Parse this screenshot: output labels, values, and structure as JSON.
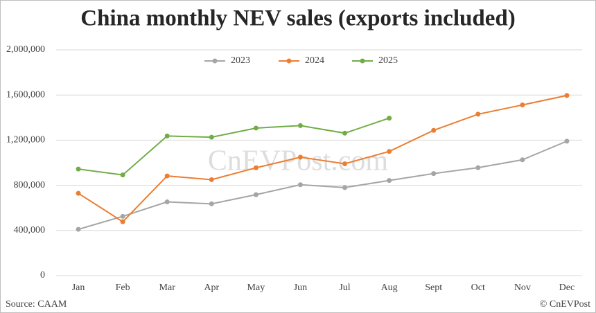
{
  "chart_data": {
    "type": "line",
    "title": "China monthly NEV sales (exports included)",
    "watermark": "CnEVPost.com",
    "source": "Source: CAAM",
    "credit": "© CnEVPost",
    "categories": [
      "Jan",
      "Feb",
      "Mar",
      "Apr",
      "May",
      "Jun",
      "Jul",
      "Aug",
      "Sept",
      "Oct",
      "Nov",
      "Dec"
    ],
    "series": [
      {
        "name": "2023",
        "color": "#a5a5a5",
        "values": [
          410000,
          525000,
          653000,
          636000,
          717000,
          805000,
          780000,
          843000,
          904000,
          956000,
          1026000,
          1191000
        ]
      },
      {
        "name": "2024",
        "color": "#ed7d31",
        "values": [
          729000,
          477000,
          883000,
          850000,
          955000,
          1049000,
          991000,
          1100000,
          1287000,
          1430000,
          1512000,
          1596000
        ]
      },
      {
        "name": "2025",
        "color": "#70ad47",
        "values": [
          944000,
          892000,
          1237000,
          1226000,
          1307000,
          1329000,
          1262000,
          1395000,
          null,
          null,
          null,
          null
        ]
      }
    ],
    "ylim": [
      0,
      2000000
    ],
    "yticks": [
      0,
      {
        "value": 400000,
        "label": "400,000"
      },
      {
        "value": 800000,
        "label": "800,000"
      },
      {
        "value": 1200000,
        "label": "1,200,000"
      },
      {
        "value": 1600000,
        "label": "1,600,000"
      },
      {
        "value": 2000000,
        "label": "2,000,000"
      }
    ],
    "grid": true,
    "legend": "top"
  }
}
